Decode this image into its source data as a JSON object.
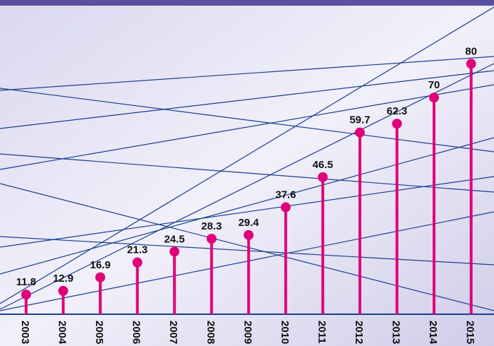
{
  "chart_data": {
    "type": "lollipop",
    "categories": [
      "2003",
      "2004",
      "2005",
      "2006",
      "2007",
      "2008",
      "2009",
      "2010",
      "2011",
      "2012",
      "2013",
      "2014",
      "2015"
    ],
    "values": [
      11.8,
      12.9,
      16.9,
      21.3,
      24.5,
      28.3,
      29.4,
      37.6,
      46.5,
      59.7,
      62.3,
      70,
      80
    ],
    "color": "#e0007a",
    "ylim": [
      6,
      98
    ]
  }
}
